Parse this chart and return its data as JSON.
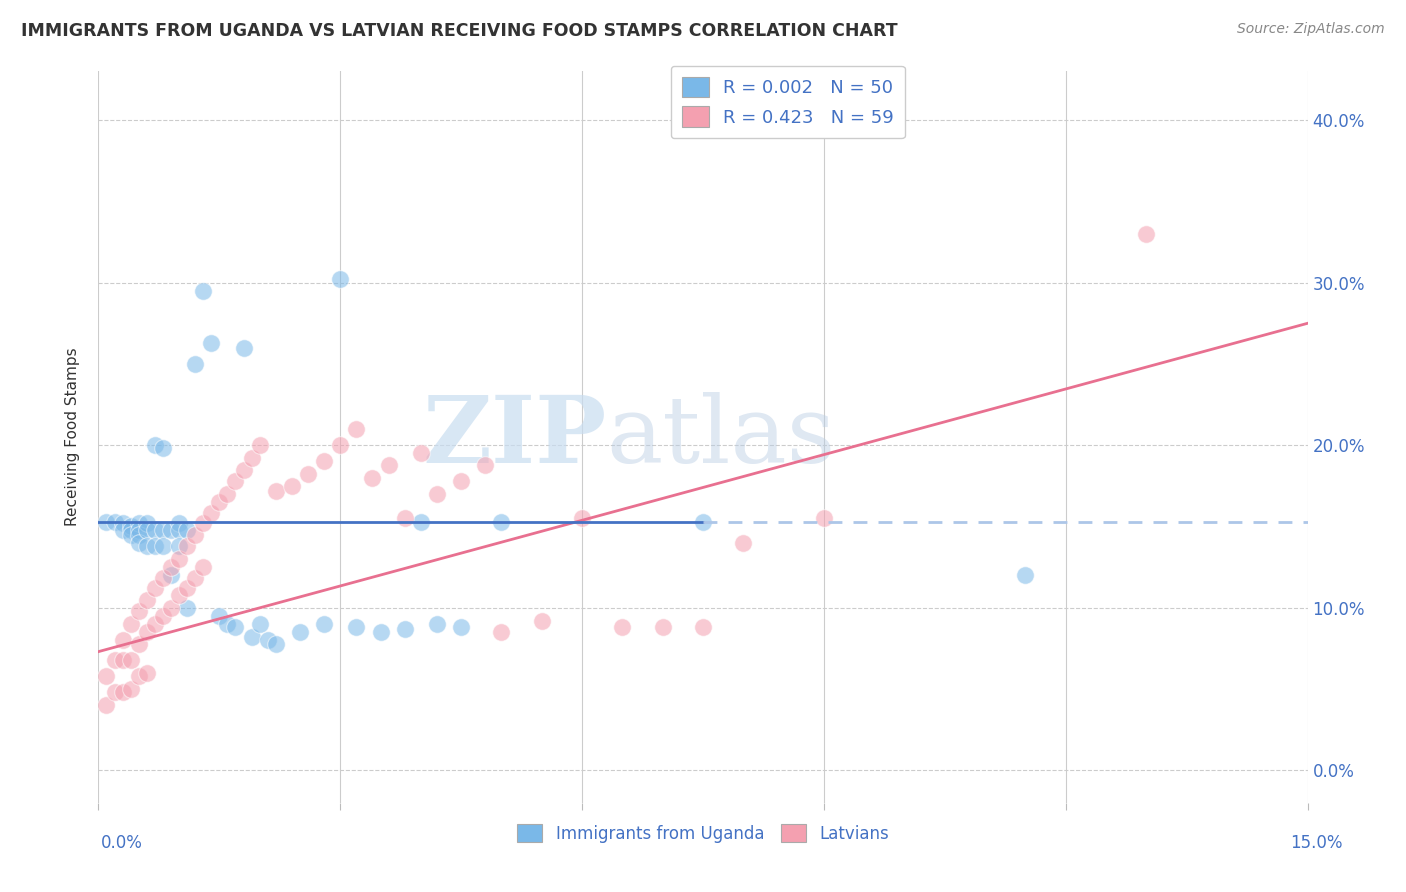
{
  "title": "IMMIGRANTS FROM UGANDA VS LATVIAN RECEIVING FOOD STAMPS CORRELATION CHART",
  "source": "Source: ZipAtlas.com",
  "ylabel": "Receiving Food Stamps",
  "ytick_vals": [
    0.0,
    0.1,
    0.2,
    0.3,
    0.4
  ],
  "xlim": [
    0.0,
    0.15
  ],
  "ylim": [
    -0.02,
    0.43
  ],
  "legend1_label": "R = 0.002   N = 50",
  "legend2_label": "R = 0.423   N = 59",
  "legend_bottom_label1": "Immigrants from Uganda",
  "legend_bottom_label2": "Latvians",
  "color_blue": "#7ab8e8",
  "color_pink": "#f4a0b0",
  "watermark_zip": "ZIP",
  "watermark_atlas": "atlas",
  "uganda_line_solid_end": 0.075,
  "uganda_line_y": 0.153,
  "latvian_line_x0": 0.0,
  "latvian_line_y0": 0.073,
  "latvian_line_x1": 0.15,
  "latvian_line_y1": 0.275,
  "uganda_x": [
    0.001,
    0.002,
    0.003,
    0.003,
    0.004,
    0.004,
    0.004,
    0.005,
    0.005,
    0.005,
    0.005,
    0.006,
    0.006,
    0.006,
    0.007,
    0.007,
    0.007,
    0.008,
    0.008,
    0.008,
    0.009,
    0.009,
    0.01,
    0.01,
    0.01,
    0.011,
    0.011,
    0.012,
    0.013,
    0.014,
    0.015,
    0.016,
    0.017,
    0.018,
    0.019,
    0.02,
    0.021,
    0.022,
    0.025,
    0.028,
    0.03,
    0.032,
    0.035,
    0.038,
    0.04,
    0.042,
    0.045,
    0.05,
    0.075,
    0.115
  ],
  "uganda_y": [
    0.153,
    0.153,
    0.152,
    0.148,
    0.15,
    0.148,
    0.145,
    0.152,
    0.148,
    0.145,
    0.14,
    0.152,
    0.148,
    0.138,
    0.2,
    0.148,
    0.138,
    0.198,
    0.148,
    0.138,
    0.148,
    0.12,
    0.152,
    0.148,
    0.138,
    0.148,
    0.1,
    0.25,
    0.295,
    0.263,
    0.095,
    0.09,
    0.088,
    0.26,
    0.082,
    0.09,
    0.08,
    0.078,
    0.085,
    0.09,
    0.302,
    0.088,
    0.085,
    0.087,
    0.153,
    0.09,
    0.088,
    0.153,
    0.153,
    0.12
  ],
  "latvian_x": [
    0.001,
    0.001,
    0.002,
    0.002,
    0.003,
    0.003,
    0.003,
    0.004,
    0.004,
    0.004,
    0.005,
    0.005,
    0.005,
    0.006,
    0.006,
    0.006,
    0.007,
    0.007,
    0.008,
    0.008,
    0.009,
    0.009,
    0.01,
    0.01,
    0.011,
    0.011,
    0.012,
    0.012,
    0.013,
    0.013,
    0.014,
    0.015,
    0.016,
    0.017,
    0.018,
    0.019,
    0.02,
    0.022,
    0.024,
    0.026,
    0.028,
    0.03,
    0.032,
    0.034,
    0.036,
    0.038,
    0.04,
    0.042,
    0.045,
    0.048,
    0.05,
    0.055,
    0.06,
    0.065,
    0.07,
    0.075,
    0.08,
    0.09,
    0.13
  ],
  "latvian_y": [
    0.058,
    0.04,
    0.068,
    0.048,
    0.08,
    0.068,
    0.048,
    0.09,
    0.068,
    0.05,
    0.098,
    0.078,
    0.058,
    0.105,
    0.085,
    0.06,
    0.112,
    0.09,
    0.118,
    0.095,
    0.125,
    0.1,
    0.13,
    0.108,
    0.138,
    0.112,
    0.145,
    0.118,
    0.152,
    0.125,
    0.158,
    0.165,
    0.17,
    0.178,
    0.185,
    0.192,
    0.2,
    0.172,
    0.175,
    0.182,
    0.19,
    0.2,
    0.21,
    0.18,
    0.188,
    0.155,
    0.195,
    0.17,
    0.178,
    0.188,
    0.085,
    0.092,
    0.155,
    0.088,
    0.088,
    0.088,
    0.14,
    0.155,
    0.33
  ]
}
